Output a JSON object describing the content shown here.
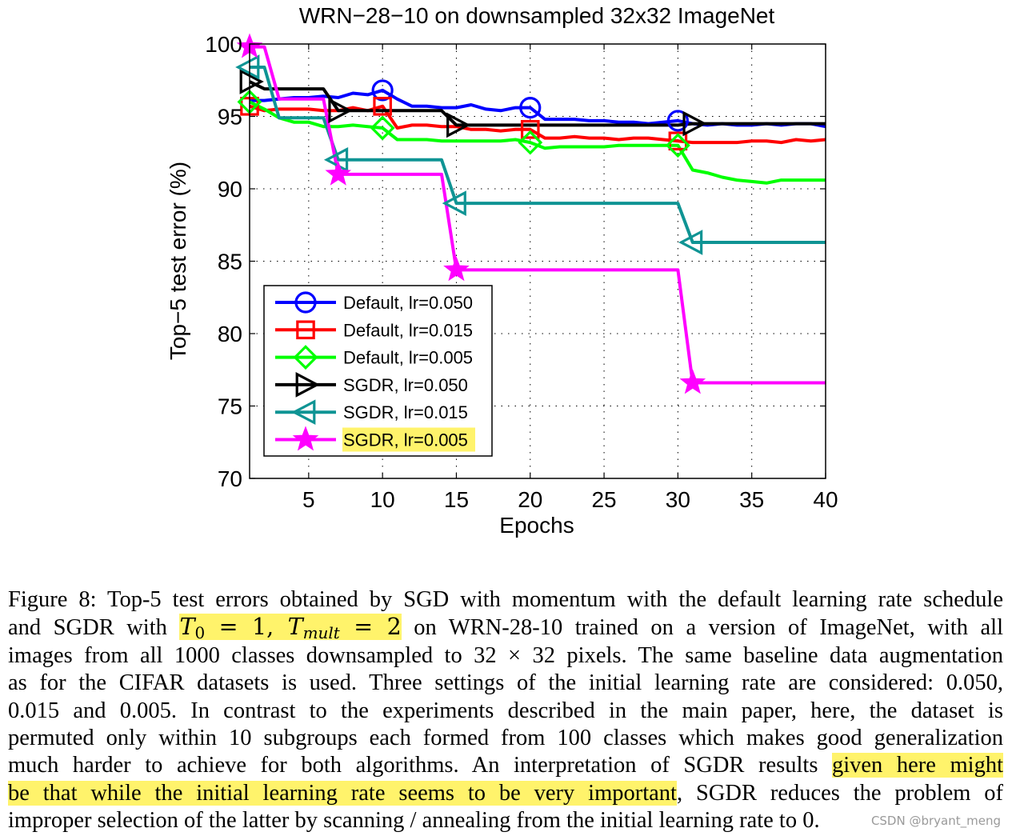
{
  "chart_data": {
    "type": "line",
    "title": "WRN−28−10 on downsampled 32x32 ImageNet",
    "xlabel": "Epochs",
    "ylabel": "Top−5 test error (%)",
    "xlim": [
      1,
      40
    ],
    "ylim": [
      70,
      100
    ],
    "xticks": [
      5,
      10,
      15,
      20,
      25,
      30,
      35,
      40
    ],
    "yticks": [
      70,
      75,
      80,
      85,
      90,
      95,
      100
    ],
    "grid": true,
    "legend_position": "bottom-left",
    "series": [
      {
        "name": "Default, lr=0.050",
        "color": "#0000ff",
        "marker": "circle",
        "x": [
          1,
          2,
          3,
          4,
          5,
          6,
          7,
          8,
          9,
          10,
          11,
          12,
          13,
          14,
          15,
          16,
          17,
          18,
          19,
          20,
          21,
          22,
          23,
          24,
          25,
          26,
          27,
          28,
          29,
          30,
          31,
          32,
          33,
          34,
          35,
          36,
          37,
          38,
          39,
          40
        ],
        "y": [
          96.1,
          96.1,
          96.2,
          96.3,
          96.3,
          96.4,
          96.3,
          96.6,
          96.5,
          96.8,
          96.2,
          95.7,
          95.7,
          95.6,
          95.6,
          95.8,
          95.5,
          95.4,
          95.6,
          95.6,
          94.8,
          94.8,
          94.8,
          94.7,
          94.7,
          94.6,
          94.6,
          94.5,
          94.6,
          94.7,
          94.5,
          94.4,
          94.5,
          94.4,
          94.4,
          94.5,
          94.4,
          94.5,
          94.5,
          94.3
        ],
        "markers_at": [
          10,
          20,
          30
        ]
      },
      {
        "name": "Default, lr=0.015",
        "color": "#ff0000",
        "marker": "square",
        "x": [
          1,
          2,
          3,
          4,
          5,
          6,
          7,
          8,
          9,
          10,
          11,
          12,
          13,
          14,
          15,
          16,
          17,
          18,
          19,
          20,
          21,
          22,
          23,
          24,
          25,
          26,
          27,
          28,
          29,
          30,
          31,
          32,
          33,
          34,
          35,
          36,
          37,
          38,
          39,
          40
        ],
        "y": [
          95.7,
          95.4,
          95.5,
          95.5,
          95.5,
          95.4,
          95.4,
          95.6,
          95.4,
          95.7,
          94.2,
          94.4,
          94.4,
          94.3,
          94.3,
          94.1,
          94.1,
          94.0,
          94.1,
          94.1,
          93.5,
          93.5,
          93.6,
          93.5,
          93.5,
          93.4,
          93.5,
          93.5,
          93.4,
          93.3,
          93.2,
          93.2,
          93.2,
          93.2,
          93.3,
          93.3,
          93.2,
          93.4,
          93.3,
          93.4
        ],
        "markers_at": [
          1,
          10,
          20,
          30
        ]
      },
      {
        "name": "Default, lr=0.005",
        "color": "#00ff00",
        "marker": "diamond",
        "x": [
          1,
          2,
          3,
          4,
          5,
          6,
          7,
          8,
          9,
          10,
          11,
          12,
          13,
          14,
          15,
          16,
          17,
          18,
          19,
          20,
          21,
          22,
          23,
          24,
          25,
          26,
          27,
          28,
          29,
          30,
          31,
          32,
          33,
          34,
          35,
          36,
          37,
          38,
          39,
          40
        ],
        "y": [
          96.0,
          95.5,
          94.9,
          94.6,
          94.6,
          94.3,
          94.3,
          94.4,
          94.3,
          94.2,
          93.4,
          93.4,
          93.4,
          93.3,
          93.3,
          93.3,
          93.3,
          93.3,
          93.4,
          93.2,
          92.8,
          92.9,
          92.9,
          92.9,
          92.9,
          93.0,
          93.0,
          93.0,
          93.0,
          93.0,
          91.3,
          91.1,
          90.8,
          90.6,
          90.5,
          90.4,
          90.6,
          90.6,
          90.6,
          90.6
        ],
        "markers_at": [
          1,
          10,
          20,
          30
        ]
      },
      {
        "name": "SGDR, lr=0.050",
        "color": "#000000",
        "marker": "triangle-right",
        "x": [
          1,
          2,
          3,
          4,
          5,
          6,
          7,
          8,
          9,
          10,
          11,
          12,
          13,
          14,
          15,
          16,
          17,
          18,
          19,
          20,
          21,
          22,
          23,
          24,
          25,
          26,
          27,
          28,
          29,
          30,
          31,
          32,
          33,
          34,
          35,
          36,
          37,
          38,
          39,
          40
        ],
        "y": [
          97.4,
          96.9,
          96.9,
          96.9,
          96.9,
          96.9,
          95.4,
          95.4,
          95.4,
          95.4,
          95.4,
          95.4,
          95.4,
          95.4,
          94.4,
          94.4,
          94.4,
          94.4,
          94.4,
          94.4,
          94.4,
          94.4,
          94.4,
          94.4,
          94.4,
          94.4,
          94.4,
          94.4,
          94.4,
          94.4,
          94.5,
          94.5,
          94.5,
          94.5,
          94.5,
          94.5,
          94.5,
          94.5,
          94.5,
          94.5
        ],
        "markers_at": [
          1,
          7,
          15,
          31
        ]
      },
      {
        "name": "SGDR, lr=0.015",
        "color": "#0f9494",
        "marker": "triangle-left",
        "x": [
          1,
          2,
          3,
          4,
          5,
          6,
          7,
          8,
          9,
          10,
          11,
          12,
          13,
          14,
          15,
          16,
          17,
          18,
          19,
          20,
          21,
          22,
          23,
          24,
          25,
          26,
          27,
          28,
          29,
          30,
          31,
          32,
          33,
          34,
          35,
          36,
          37,
          38,
          39,
          40
        ],
        "y": [
          98.4,
          98.4,
          94.9,
          94.9,
          94.9,
          94.9,
          92.0,
          92.0,
          92.0,
          92.0,
          92.0,
          92.0,
          92.0,
          92.0,
          89.0,
          89.0,
          89.0,
          89.0,
          89.0,
          89.0,
          89.0,
          89.0,
          89.0,
          89.0,
          89.0,
          89.0,
          89.0,
          89.0,
          89.0,
          89.0,
          86.3,
          86.3,
          86.3,
          86.3,
          86.3,
          86.3,
          86.3,
          86.3,
          86.3,
          86.3
        ],
        "markers_at": [
          1,
          7,
          15,
          31
        ]
      },
      {
        "name": "SGDR, lr=0.005",
        "color": "#ff00ff",
        "marker": "star",
        "x": [
          1,
          2,
          3,
          4,
          5,
          6,
          7,
          8,
          9,
          10,
          11,
          12,
          13,
          14,
          15,
          16,
          17,
          18,
          19,
          20,
          21,
          22,
          23,
          24,
          25,
          26,
          27,
          28,
          29,
          30,
          31,
          32,
          33,
          34,
          35,
          36,
          37,
          38,
          39,
          40
        ],
        "y": [
          99.8,
          99.8,
          96.2,
          96.2,
          96.2,
          96.2,
          91.0,
          91.0,
          91.0,
          91.0,
          91.0,
          91.0,
          91.0,
          91.0,
          84.4,
          84.4,
          84.4,
          84.4,
          84.4,
          84.4,
          84.4,
          84.4,
          84.4,
          84.4,
          84.4,
          84.4,
          84.4,
          84.4,
          84.4,
          84.4,
          76.6,
          76.6,
          76.6,
          76.6,
          76.6,
          76.6,
          76.6,
          76.6,
          76.6,
          76.6
        ],
        "markers_at": [
          1,
          7,
          15,
          31
        ],
        "legend_highlight": "#fff36b"
      }
    ]
  },
  "caption": {
    "lines": [
      [
        "Figure 8:  Top-5 test errors obtained by SGD with momentum with the default learning rate schedule"
      ],
      [
        "and SGDR with ",
        "__MATH__",
        " on WRN-28-10 trained on a version of ImageNet, with all"
      ],
      [
        "images from all 1000 classes downsampled to 32 × 32 pixels. The same baseline data augmentation"
      ],
      [
        "as for the CIFAR datasets is used.  Three settings of the initial learning rate are considered:  0.050,"
      ],
      [
        "0.015 and 0.005.  In contrast to the experiments described in the main paper, here, the dataset is"
      ],
      [
        "permuted only within 10 subgroups each formed from 100 classes which makes good generalization"
      ],
      [
        "much harder to achieve for both algorithms.  An interpretation of SGDR results ",
        "__HL1__"
      ],
      [
        "__HL2__",
        ", SGDR reduces the problem of"
      ],
      [
        "improper selection of the latter by scanning / annealing from the initial learning rate to 0."
      ]
    ],
    "math": {
      "T": "T",
      "sub0": "0",
      "eq1": " = 1, ",
      "Tm": "T",
      "submult": "mult",
      "eq2": " = 2"
    },
    "highlight_1": "given here might",
    "highlight_2": "be that while the initial learning rate seems to be very important",
    "highlight_color": "#fff36b"
  },
  "watermark": "CSDN @bryant_meng"
}
